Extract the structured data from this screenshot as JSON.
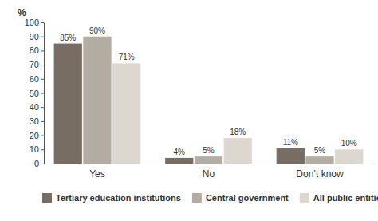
{
  "chart_data": {
    "type": "bar",
    "y_label": "%",
    "categories": [
      "Yes",
      "No",
      "Don’t know"
    ],
    "series": [
      {
        "name": "Tertiary education institutions",
        "color": "#776d62",
        "values": [
          85,
          4,
          11
        ],
        "value_labels": [
          "85%",
          "4%",
          "11%"
        ]
      },
      {
        "name": "Central government",
        "color": "#b3aca3",
        "values": [
          90,
          5,
          5
        ],
        "value_labels": [
          "90%",
          "5%",
          "5%"
        ]
      },
      {
        "name": "All public entities",
        "color": "#ddd7d0",
        "values": [
          71,
          18,
          10
        ],
        "value_labels": [
          "71%",
          "18%",
          "10%"
        ]
      }
    ],
    "ylim": [
      0,
      100
    ],
    "yticks": [
      0,
      10,
      20,
      30,
      40,
      50,
      60,
      70,
      80,
      90,
      100
    ],
    "grid": false,
    "legend": "bottom",
    "data_labels": true
  }
}
